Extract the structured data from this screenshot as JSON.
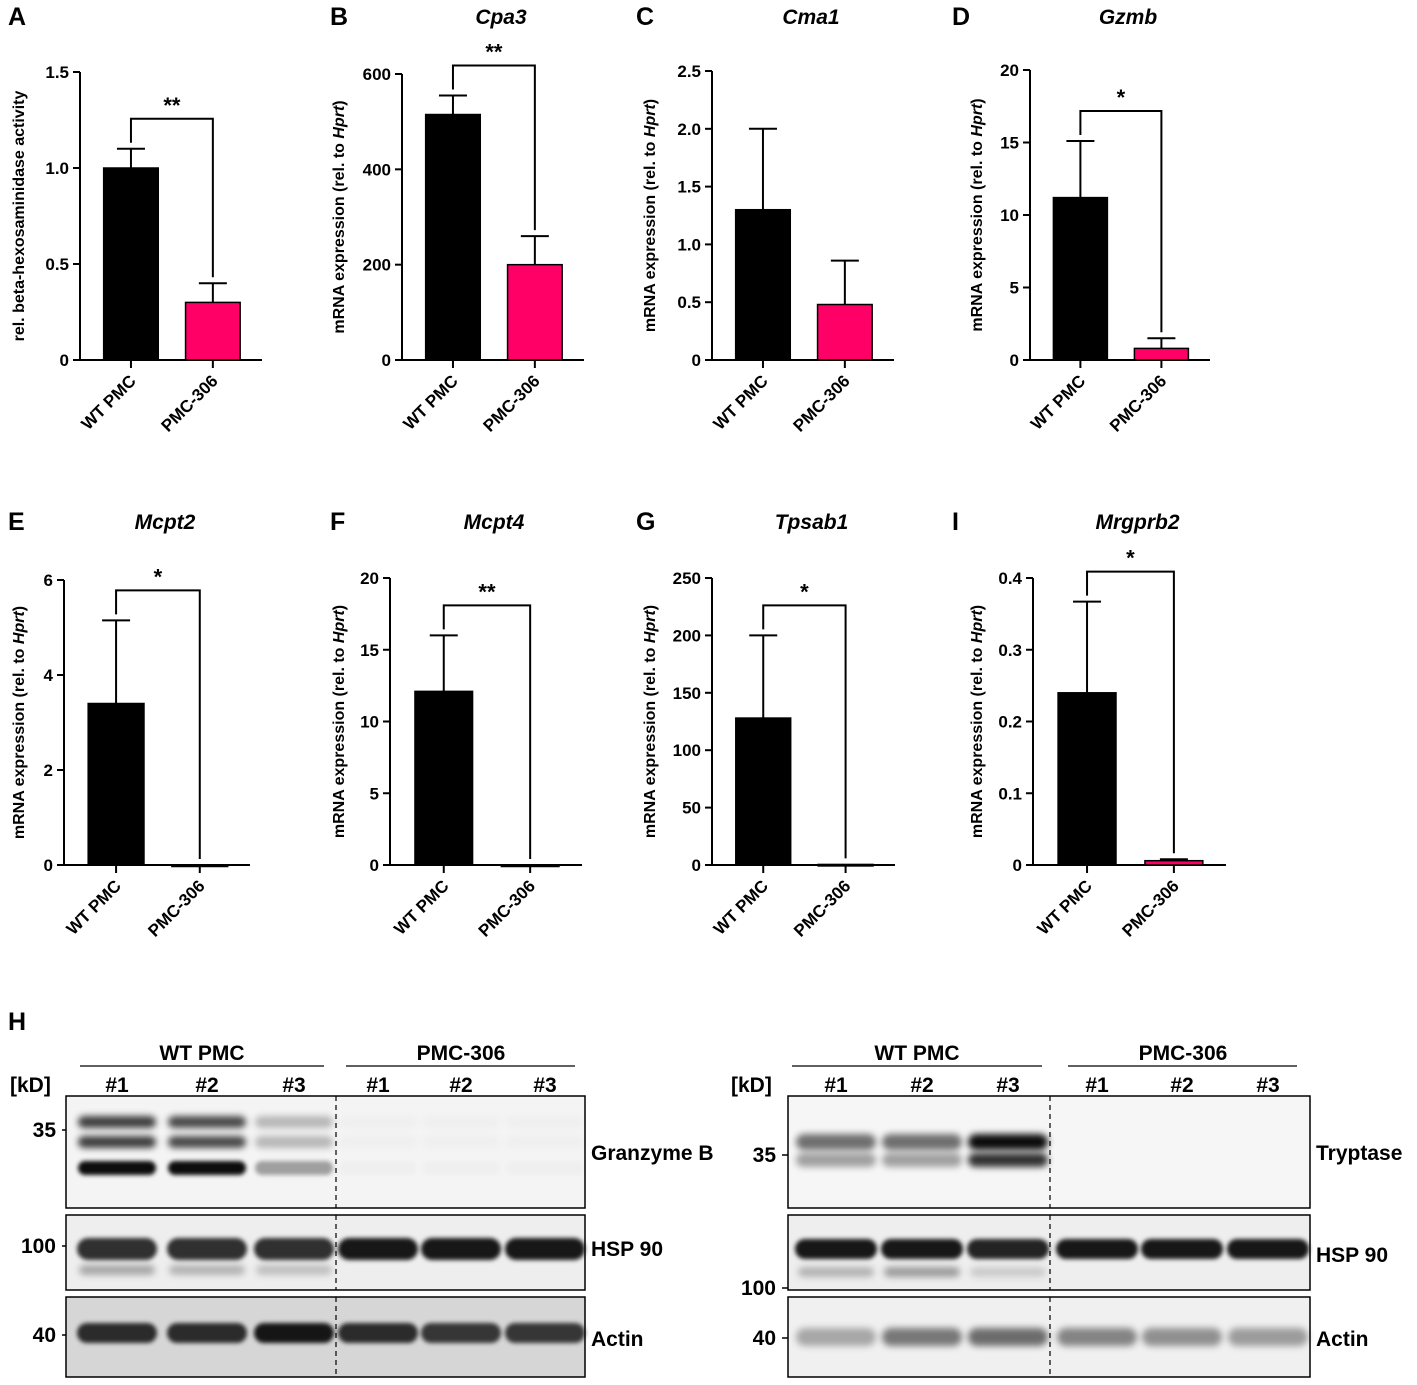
{
  "colors": {
    "wt": "#000000",
    "pmc306": "#ff0066",
    "axis": "#000000"
  },
  "chart_data": [
    {
      "type": "bar",
      "panel": "A",
      "title": "",
      "ylabel_parts": [
        "rel. beta-hexosaminidase activity"
      ],
      "categories": [
        "WT PMC",
        "PMC-306"
      ],
      "values": [
        1.0,
        0.3
      ],
      "errors": [
        0.1,
        0.1
      ],
      "ylim": [
        0,
        1.5
      ],
      "yticks": [
        "0",
        "0.5",
        "1.0",
        "1.5"
      ],
      "significance": "**"
    },
    {
      "type": "bar",
      "panel": "B",
      "title": "Cpa3",
      "ylabel_parts": [
        "mRNA expression (rel. to ",
        "Hprt",
        ")"
      ],
      "categories": [
        "WT PMC",
        "PMC-306"
      ],
      "values": [
        515,
        200
      ],
      "errors": [
        40,
        60
      ],
      "ylim": [
        0,
        600
      ],
      "yticks": [
        "0",
        "200",
        "400",
        "600"
      ],
      "significance": "**"
    },
    {
      "type": "bar",
      "panel": "C",
      "title": "Cma1",
      "ylabel_parts": [
        "mRNA expression (rel. to ",
        "Hprt",
        ")"
      ],
      "categories": [
        "WT PMC",
        "PMC-306"
      ],
      "values": [
        1.3,
        0.48
      ],
      "errors": [
        0.7,
        0.38
      ],
      "ylim": [
        0,
        2.5
      ],
      "yticks": [
        "0",
        "0.5",
        "1.0",
        "1.5",
        "2.0",
        "2.5"
      ],
      "significance": ""
    },
    {
      "type": "bar",
      "panel": "D",
      "title": "Gzmb",
      "ylabel_parts": [
        "mRNA expression (rel. to ",
        "Hprt",
        ")"
      ],
      "categories": [
        "WT PMC",
        "PMC-306"
      ],
      "values": [
        11.2,
        0.8
      ],
      "errors": [
        3.9,
        0.7
      ],
      "ylim": [
        0,
        20
      ],
      "yticks": [
        "0",
        "5",
        "10",
        "15",
        "20"
      ],
      "significance": "*"
    },
    {
      "type": "bar",
      "panel": "E",
      "title": "Mcpt2",
      "ylabel_parts": [
        "mRNA expression (rel. to ",
        "Hprt",
        ")"
      ],
      "categories": [
        "WT PMC",
        "PMC-306"
      ],
      "values": [
        3.4,
        0.0
      ],
      "errors": [
        1.75,
        0.0
      ],
      "ylim": [
        0,
        6
      ],
      "yticks": [
        "0",
        "2",
        "4",
        "6"
      ],
      "significance": "*"
    },
    {
      "type": "bar",
      "panel": "F",
      "title": "Mcpt4",
      "ylabel_parts": [
        "mRNA expression (rel. to ",
        "Hprt",
        ")"
      ],
      "categories": [
        "WT PMC",
        "PMC-306"
      ],
      "values": [
        12.1,
        0.0
      ],
      "errors": [
        3.9,
        0.0
      ],
      "ylim": [
        0,
        20
      ],
      "yticks": [
        "0",
        "5",
        "10",
        "15",
        "20"
      ],
      "significance": "**"
    },
    {
      "type": "bar",
      "panel": "G",
      "title": "Tpsab1",
      "ylabel_parts": [
        "mRNA expression (rel. to ",
        "Hprt",
        ")"
      ],
      "categories": [
        "WT PMC",
        "PMC-306"
      ],
      "values": [
        128,
        0.5
      ],
      "errors": [
        72,
        0.0
      ],
      "ylim": [
        0,
        250
      ],
      "yticks": [
        "0",
        "50",
        "100",
        "150",
        "200",
        "250"
      ],
      "significance": "*"
    },
    {
      "type": "bar",
      "panel": "I",
      "title": "Mrgprb2",
      "ylabel_parts": [
        "mRNA expression (rel. to ",
        "Hprt",
        ")"
      ],
      "categories": [
        "WT PMC",
        "PMC-306"
      ],
      "values": [
        0.24,
        0.006
      ],
      "errors": [
        0.127,
        0.002
      ],
      "ylim": [
        0,
        0.4
      ],
      "yticks": [
        "0",
        "0.1",
        "0.2",
        "0.3",
        "0.4"
      ],
      "significance": "*"
    }
  ],
  "western": {
    "panel_label": "H",
    "kd_label": "[kD]",
    "lanes": [
      "#1",
      "#2",
      "#3",
      "#1",
      "#2",
      "#3"
    ],
    "group_labels": [
      "WT PMC",
      "PMC-306"
    ],
    "left": {
      "blots": [
        {
          "name": "Granzyme B",
          "marker": "35"
        },
        {
          "name": "HSP 90",
          "marker": "100"
        },
        {
          "name": "Actin",
          "marker": "40"
        }
      ]
    },
    "right": {
      "blots": [
        {
          "name": "Tryptase",
          "marker": "35"
        },
        {
          "name": "HSP 90",
          "marker": "100"
        },
        {
          "name": "Actin",
          "marker": "40"
        }
      ]
    },
    "band_intensity": {
      "granzyme_b_upper": [
        0.75,
        0.7,
        0.25,
        0.02,
        0.02,
        0.02
      ],
      "granzyme_b_lower": [
        0.95,
        0.95,
        0.35,
        0.02,
        0.02,
        0.02
      ],
      "tryptase": [
        0.55,
        0.55,
        0.95,
        0.0,
        0.0,
        0.0
      ],
      "hsp90_left": [
        0.8,
        0.8,
        0.8,
        0.9,
        0.9,
        0.9
      ],
      "hsp90_right": [
        0.9,
        0.9,
        0.85,
        0.9,
        0.9,
        0.9
      ],
      "actin_left": [
        0.8,
        0.8,
        0.9,
        0.8,
        0.75,
        0.75
      ],
      "actin_right": [
        0.3,
        0.5,
        0.55,
        0.45,
        0.4,
        0.35
      ]
    }
  }
}
